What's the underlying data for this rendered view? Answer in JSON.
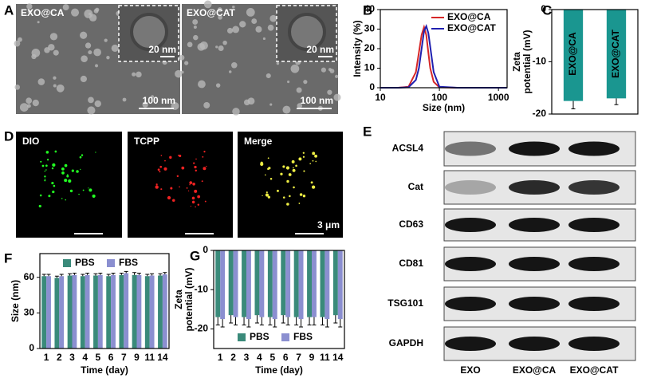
{
  "panel_labels": [
    "A",
    "B",
    "C",
    "D",
    "E",
    "F",
    "G"
  ],
  "tem": {
    "panels": [
      {
        "label": "EXO@CA",
        "inset_scale": "20 nm",
        "scale": "100 nm"
      },
      {
        "label": "EXO@CAT",
        "inset_scale": "20 nm",
        "scale": "100 nm"
      }
    ]
  },
  "fluorescence": {
    "panels": [
      "DIO",
      "TCPP",
      "Merge"
    ],
    "scale": "3 μm"
  },
  "blot": {
    "rows": [
      "ACSL4",
      "Cat",
      "CD63",
      "CD81",
      "TSG101",
      "GAPDH"
    ],
    "columns": [
      "EXO",
      "EXO@CA",
      "EXO@CAT"
    ]
  },
  "chart_data": [
    {
      "type": "line",
      "xlabel": "Size (nm)",
      "ylabel": "Intensity (%)",
      "xscale": "log",
      "x": [
        10,
        20,
        30,
        40,
        45,
        50,
        55,
        60,
        65,
        70,
        80,
        100,
        200,
        1000,
        1400
      ],
      "series": [
        {
          "name": "EXO@CA",
          "color": "#d62728",
          "values": [
            0,
            0,
            0.5,
            8,
            18,
            27,
            31,
            27,
            18,
            10,
            3,
            0.2,
            0,
            0,
            0
          ]
        },
        {
          "name": "EXO@CAT",
          "color": "#2020b0",
          "values": [
            0,
            0,
            0.2,
            4,
            10,
            20,
            29,
            31.5,
            28,
            21,
            8,
            0.5,
            0,
            0,
            0
          ]
        }
      ],
      "xlim": [
        10,
        1400
      ],
      "xticks": [
        10,
        100,
        1000
      ],
      "ylim": [
        0,
        40
      ],
      "yticks": [
        0,
        10,
        20,
        30,
        40
      ],
      "legend": "upper right"
    },
    {
      "type": "bar",
      "ylabel": [
        "Zeta",
        "potential (mV)"
      ],
      "categories": [
        "EXO@CA",
        "EXO@CAT"
      ],
      "values": [
        -17.5,
        -17
      ],
      "errors": [
        1.5,
        1.2
      ],
      "color": "#1a9690",
      "ylim": [
        -20,
        0
      ],
      "yticks": [
        -20,
        -10,
        0
      ]
    },
    {
      "type": "bar",
      "xlabel": "Time (day)",
      "ylabel": [
        "Size (nm)"
      ],
      "categories": [
        "1",
        "2",
        "3",
        "4",
        "5",
        "6",
        "7",
        "9",
        "11",
        "14"
      ],
      "series": [
        {
          "name": "PBS",
          "color": "#3a8a7a",
          "values": [
            61,
            59.5,
            61.5,
            61,
            61.5,
            61,
            62,
            62,
            61,
            61.5
          ],
          "errors": [
            1.5,
            1.5,
            1.5,
            1.5,
            1.5,
            1.5,
            1.5,
            2,
            1.5,
            1.5
          ]
        },
        {
          "name": "FBS",
          "color": "#8b8fd0",
          "values": [
            61,
            61,
            62,
            62,
            62,
            62,
            63.5,
            62,
            61.5,
            62.5
          ],
          "errors": [
            1.5,
            1.5,
            1.5,
            1.5,
            1.5,
            1.5,
            1.5,
            1.5,
            1.5,
            1.5
          ]
        }
      ],
      "ylim": [
        0,
        80
      ],
      "yticks": [
        0,
        30,
        60
      ],
      "legend": "upper center"
    },
    {
      "type": "bar",
      "xlabel": "Time (day)",
      "ylabel": [
        "Zeta",
        "potential (mV)"
      ],
      "categories": [
        "1",
        "2",
        "3",
        "4",
        "5",
        "6",
        "7",
        "9",
        "11",
        "14"
      ],
      "series": [
        {
          "name": "PBS",
          "color": "#3a8a7a",
          "values": [
            -17,
            -16.5,
            -17,
            -16.5,
            -17,
            -16.5,
            -17,
            -17,
            -17,
            -16.5
          ],
          "errors": [
            2,
            2,
            2,
            2,
            2,
            2,
            2,
            2,
            2,
            2
          ]
        },
        {
          "name": "FBS",
          "color": "#8b8fd0",
          "values": [
            -17.5,
            -17,
            -17.5,
            -17,
            -17.5,
            -17,
            -17.5,
            -17,
            -17.5,
            -17.5
          ],
          "errors": [
            2,
            2,
            2,
            2,
            2,
            2,
            2,
            2,
            2,
            2
          ]
        }
      ],
      "ylim": [
        -25,
        0
      ],
      "yticks": [
        -20,
        -10,
        0
      ],
      "legend": "lower center"
    }
  ]
}
